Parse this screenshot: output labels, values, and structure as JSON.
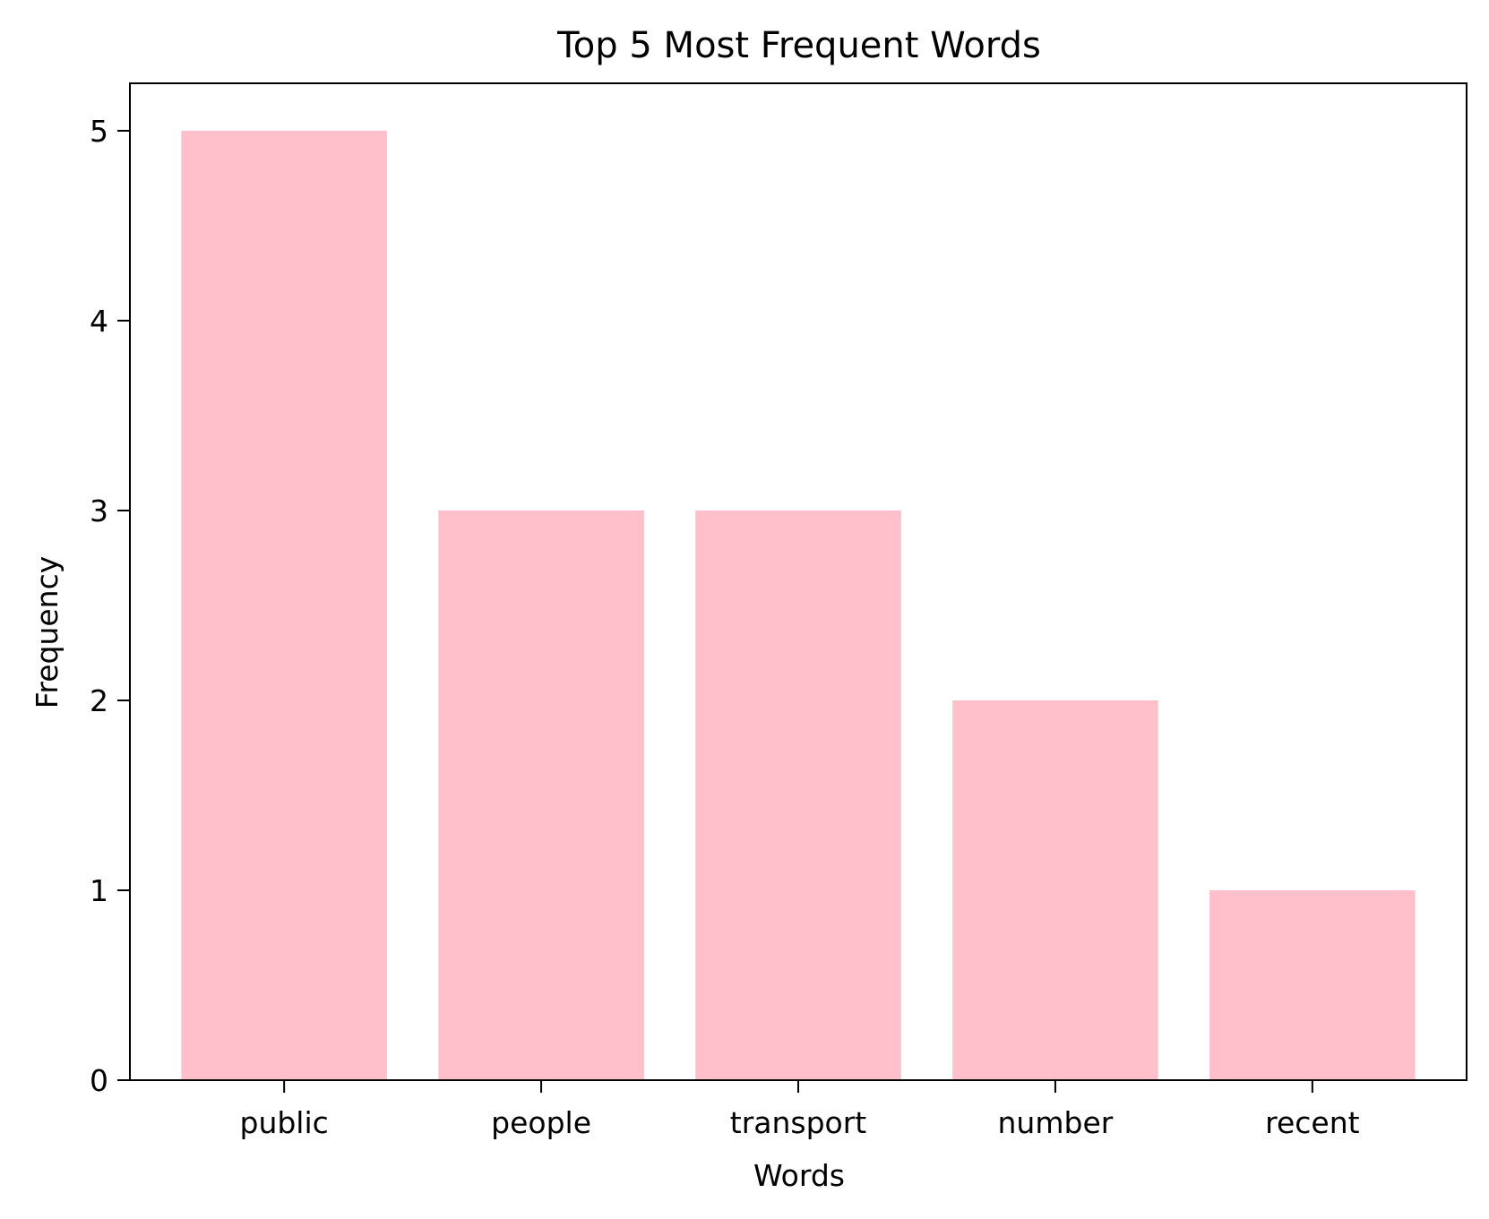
{
  "chart_data": {
    "type": "bar",
    "title": "Top 5 Most Frequent Words",
    "xlabel": "Words",
    "ylabel": "Frequency",
    "categories": [
      "public",
      "people",
      "transport",
      "number",
      "recent"
    ],
    "values": [
      5,
      3,
      3,
      2,
      1
    ],
    "ylim": [
      0,
      5.25
    ],
    "yticks": [
      0,
      1,
      2,
      3,
      4,
      5
    ],
    "grid": false,
    "legend": "none",
    "colors": {
      "bar": "#ffc0cb",
      "axis": "#000000",
      "background": "#ffffff"
    }
  }
}
